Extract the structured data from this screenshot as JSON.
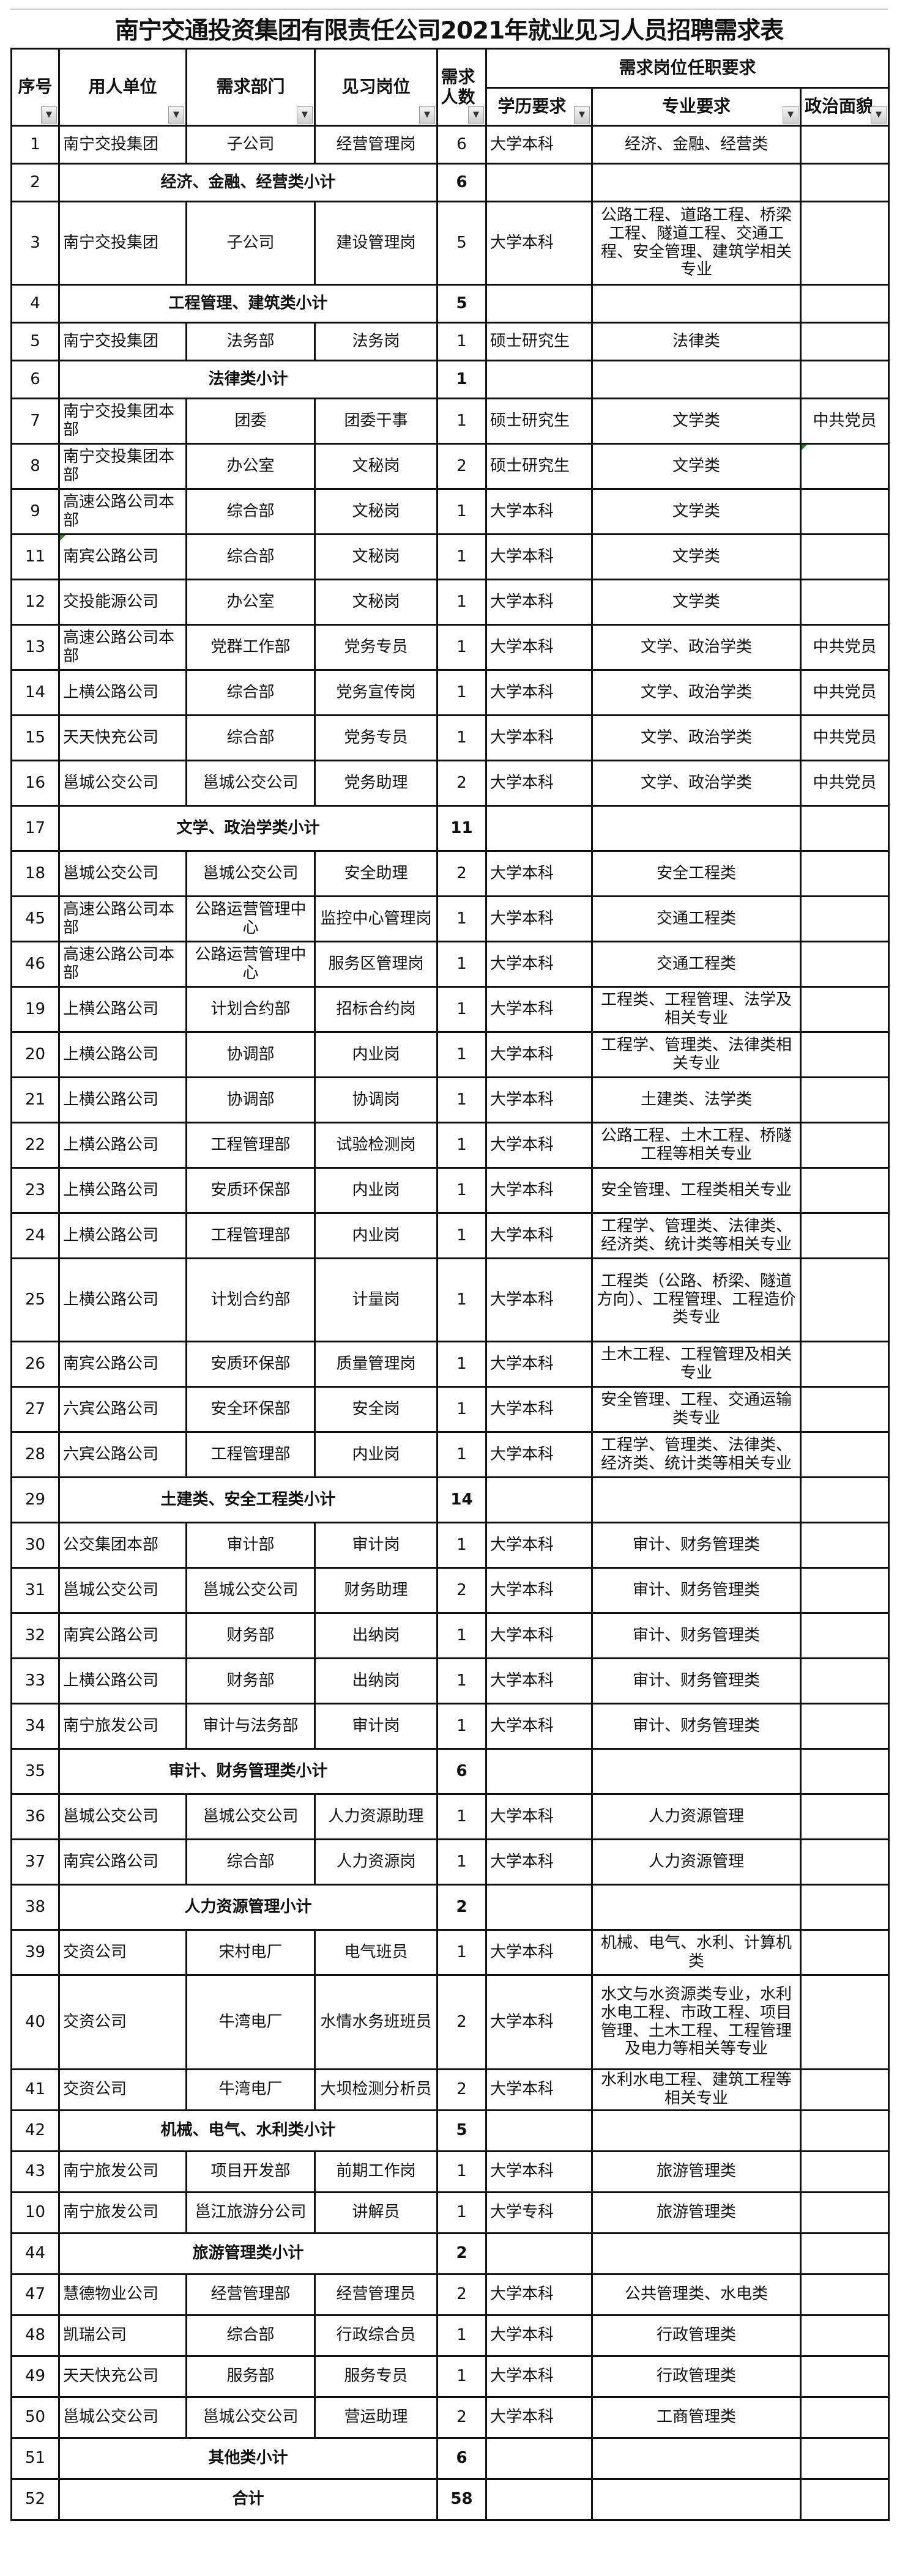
{
  "title": "南宁交通投资集团有限责任公司2021年就业见习人员招聘需求表",
  "headers": {
    "seq": "序号",
    "unit": "用人单位",
    "dept": "需求部门",
    "post": "见习岗位",
    "count": "需求人数",
    "requirements": "需求岗位任职要求",
    "edu": "学历要求",
    "major": "专业要求",
    "politics": "政治面貌"
  },
  "filter_icon": "▼",
  "rows": [
    {
      "seq": "1",
      "unit": "南宁交投集团",
      "dept": "子公司",
      "post": "经营管理岗",
      "count": "6",
      "edu": "大学本科",
      "major": "经济、金融、经营类",
      "politics": ""
    },
    {
      "seq": "2",
      "subtotal": "经济、金融、经营类小计",
      "count": "6"
    },
    {
      "seq": "3",
      "unit": "南宁交投集团",
      "dept": "子公司",
      "post": "建设管理岗",
      "count": "5",
      "edu": "大学本科",
      "major": "公路工程、道路工程、桥梁工程、隧道工程、交通工程、安全管理、建筑学相关专业",
      "politics": ""
    },
    {
      "seq": "4",
      "subtotal": "工程管理、建筑类小计",
      "count": "5"
    },
    {
      "seq": "5",
      "unit": "南宁交投集团",
      "dept": "法务部",
      "post": "法务岗",
      "count": "1",
      "edu": "硕士研究生",
      "major": "法律类",
      "politics": ""
    },
    {
      "seq": "6",
      "subtotal": "法律类小计",
      "count": "1"
    },
    {
      "seq": "7",
      "unit": "南宁交投集团本部",
      "dept": "团委",
      "post": "团委干事",
      "count": "1",
      "edu": "硕士研究生",
      "major": "文学类",
      "politics": "中共党员"
    },
    {
      "seq": "8",
      "unit": "南宁交投集团本部",
      "dept": "办公室",
      "post": "文秘岗",
      "count": "2",
      "edu": "硕士研究生",
      "major": "文学类",
      "politics": ""
    },
    {
      "seq": "9",
      "unit": "高速公路公司本部",
      "dept": "综合部",
      "post": "文秘岗",
      "count": "1",
      "edu": "大学本科",
      "major": "文学类",
      "politics": ""
    },
    {
      "seq": "11",
      "unit": "南宾公路公司",
      "dept": "综合部",
      "post": "文秘岗",
      "count": "1",
      "edu": "大学本科",
      "major": "文学类",
      "politics": ""
    },
    {
      "seq": "12",
      "unit": "交投能源公司",
      "dept": "办公室",
      "post": "文秘岗",
      "count": "1",
      "edu": "大学本科",
      "major": "文学类",
      "politics": ""
    },
    {
      "seq": "13",
      "unit": "高速公路公司本部",
      "dept": "党群工作部",
      "post": "党务专员",
      "count": "1",
      "edu": "大学本科",
      "major": "文学、政治学类",
      "politics": "中共党员"
    },
    {
      "seq": "14",
      "unit": "上横公路公司",
      "dept": "综合部",
      "post": "党务宣传岗",
      "count": "1",
      "edu": "大学本科",
      "major": "文学、政治学类",
      "politics": "中共党员"
    },
    {
      "seq": "15",
      "unit": "天天快充公司",
      "dept": "综合部",
      "post": "党务专员",
      "count": "1",
      "edu": "大学本科",
      "major": "文学、政治学类",
      "politics": "中共党员"
    },
    {
      "seq": "16",
      "unit": "邕城公交公司",
      "dept": "邕城公交公司",
      "post": "党务助理",
      "count": "2",
      "edu": "大学本科",
      "major": "文学、政治学类",
      "politics": "中共党员"
    },
    {
      "seq": "17",
      "subtotal": "文学、政治学类小计",
      "count": "11"
    },
    {
      "seq": "18",
      "unit": "邕城公交公司",
      "dept": "邕城公交公司",
      "post": "安全助理",
      "count": "2",
      "edu": "大学本科",
      "major": "安全工程类",
      "politics": ""
    },
    {
      "seq": "45",
      "unit": "高速公路公司本部",
      "dept": "公路运营管理中心",
      "post": "监控中心管理岗",
      "count": "1",
      "edu": "大学本科",
      "major": "交通工程类",
      "politics": ""
    },
    {
      "seq": "46",
      "unit": "高速公路公司本部",
      "dept": "公路运营管理中心",
      "post": "服务区管理岗",
      "count": "1",
      "edu": "大学本科",
      "major": "交通工程类",
      "politics": ""
    },
    {
      "seq": "19",
      "unit": "上横公路公司",
      "dept": "计划合约部",
      "post": "招标合约岗",
      "count": "1",
      "edu": "大学本科",
      "major": "工程类、工程管理、法学及相关专业",
      "politics": ""
    },
    {
      "seq": "20",
      "unit": "上横公路公司",
      "dept": "协调部",
      "post": "内业岗",
      "count": "1",
      "edu": "大学本科",
      "major": "工程学、管理类、法律类相关专业",
      "politics": ""
    },
    {
      "seq": "21",
      "unit": "上横公路公司",
      "dept": "协调部",
      "post": "协调岗",
      "count": "1",
      "edu": "大学本科",
      "major": "土建类、法学类",
      "politics": ""
    },
    {
      "seq": "22",
      "unit": "上横公路公司",
      "dept": "工程管理部",
      "post": "试验检测岗",
      "count": "1",
      "edu": "大学本科",
      "major": "公路工程、土木工程、桥隧工程等相关专业",
      "politics": ""
    },
    {
      "seq": "23",
      "unit": "上横公路公司",
      "dept": "安质环保部",
      "post": "内业岗",
      "count": "1",
      "edu": "大学本科",
      "major": "安全管理、工程类相关专业",
      "politics": ""
    },
    {
      "seq": "24",
      "unit": "上横公路公司",
      "dept": "工程管理部",
      "post": "内业岗",
      "count": "1",
      "edu": "大学本科",
      "major": "工程学、管理类、法律类、经济类、统计类等相关专业",
      "politics": ""
    },
    {
      "seq": "25",
      "unit": "上横公路公司",
      "dept": "计划合约部",
      "post": "计量岗",
      "count": "1",
      "edu": "大学本科",
      "major": "工程类（公路、桥梁、隧道方向）、工程管理、工程造价类专业",
      "politics": ""
    },
    {
      "seq": "26",
      "unit": "南宾公路公司",
      "dept": "安质环保部",
      "post": "质量管理岗",
      "count": "1",
      "edu": "大学本科",
      "major": "土木工程、工程管理及相关专业",
      "politics": ""
    },
    {
      "seq": "27",
      "unit": "六宾公路公司",
      "dept": "安全环保部",
      "post": "安全岗",
      "count": "1",
      "edu": "大学本科",
      "major": "安全管理、工程、交通运输类专业",
      "politics": ""
    },
    {
      "seq": "28",
      "unit": "六宾公路公司",
      "dept": "工程管理部",
      "post": "内业岗",
      "count": "1",
      "edu": "大学本科",
      "major": "工程学、管理类、法律类、经济类、统计类等相关专业",
      "politics": ""
    },
    {
      "seq": "29",
      "subtotal": "土建类、安全工程类小计",
      "count": "14"
    },
    {
      "seq": "30",
      "unit": "公交集团本部",
      "dept": "审计部",
      "post": "审计岗",
      "count": "1",
      "edu": "大学本科",
      "major": "审计、财务管理类",
      "politics": ""
    },
    {
      "seq": "31",
      "unit": "邕城公交公司",
      "dept": "邕城公交公司",
      "post": "财务助理",
      "count": "2",
      "edu": "大学本科",
      "major": "审计、财务管理类",
      "politics": ""
    },
    {
      "seq": "32",
      "unit": "南宾公路公司",
      "dept": "财务部",
      "post": "出纳岗",
      "count": "1",
      "edu": "大学本科",
      "major": "审计、财务管理类",
      "politics": ""
    },
    {
      "seq": "33",
      "unit": "上横公路公司",
      "dept": "财务部",
      "post": "出纳岗",
      "count": "1",
      "edu": "大学本科",
      "major": "审计、财务管理类",
      "politics": ""
    },
    {
      "seq": "34",
      "unit": "南宁旅发公司",
      "dept": "审计与法务部",
      "post": "审计岗",
      "count": "1",
      "edu": "大学本科",
      "major": "审计、财务管理类",
      "politics": ""
    },
    {
      "seq": "35",
      "subtotal": "审计、财务管理类小计",
      "count": "6"
    },
    {
      "seq": "36",
      "unit": "邕城公交公司",
      "dept": "邕城公交公司",
      "post": "人力资源助理",
      "count": "1",
      "edu": "大学本科",
      "major": "人力资源管理",
      "politics": ""
    },
    {
      "seq": "37",
      "unit": "南宾公路公司",
      "dept": "综合部",
      "post": "人力资源岗",
      "count": "1",
      "edu": "大学本科",
      "major": "人力资源管理",
      "politics": ""
    },
    {
      "seq": "38",
      "subtotal": "人力资源管理小计",
      "count": "2"
    },
    {
      "seq": "39",
      "unit": "交资公司",
      "dept": "宋村电厂",
      "post": "电气班员",
      "count": "1",
      "edu": "大学本科",
      "major": "机械、电气、水利、计算机类",
      "politics": ""
    },
    {
      "seq": "40",
      "unit": "交资公司",
      "dept": "牛湾电厂",
      "post": "水情水务班班员",
      "count": "2",
      "edu": "大学本科",
      "major": "水文与水资源类专业，水利水电工程、市政工程、项目管理、土木工程、工程管理及电力等相关等专业",
      "politics": ""
    },
    {
      "seq": "41",
      "unit": "交资公司",
      "dept": "牛湾电厂",
      "post": "大坝检测分析员",
      "count": "2",
      "edu": "大学本科",
      "major": "水利水电工程、建筑工程等相关专业",
      "politics": ""
    },
    {
      "seq": "42",
      "subtotal": "机械、电气、水利类小计",
      "count": "5"
    },
    {
      "seq": "43",
      "unit": "南宁旅发公司",
      "dept": "项目开发部",
      "post": "前期工作岗",
      "count": "1",
      "edu": "大学本科",
      "major": "旅游管理类",
      "politics": ""
    },
    {
      "seq": "10",
      "unit": "南宁旅发公司",
      "dept": "邕江旅游分公司",
      "post": "讲解员",
      "count": "1",
      "edu": "大学专科",
      "major": "旅游管理类",
      "politics": ""
    },
    {
      "seq": "44",
      "subtotal": "旅游管理类小计",
      "count": "2"
    },
    {
      "seq": "47",
      "unit": "慧德物业公司",
      "dept": "经营管理部",
      "post": "经营管理员",
      "count": "2",
      "edu": "大学本科",
      "major": "公共管理类、水电类",
      "politics": ""
    },
    {
      "seq": "48",
      "unit": "凯瑞公司",
      "dept": "综合部",
      "post": "行政综合员",
      "count": "1",
      "edu": "大学本科",
      "major": "行政管理类",
      "politics": ""
    },
    {
      "seq": "49",
      "unit": "天天快充公司",
      "dept": "服务部",
      "post": "服务专员",
      "count": "1",
      "edu": "大学本科",
      "major": "行政管理类",
      "politics": ""
    },
    {
      "seq": "50",
      "unit": "邕城公交公司",
      "dept": "邕城公交公司",
      "post": "营运助理",
      "count": "2",
      "edu": "大学本科",
      "major": "工商管理类",
      "politics": ""
    },
    {
      "seq": "51",
      "subtotal": "其他类小计",
      "count": "6"
    },
    {
      "seq": "52",
      "subtotal": "合计",
      "count": "58"
    }
  ]
}
